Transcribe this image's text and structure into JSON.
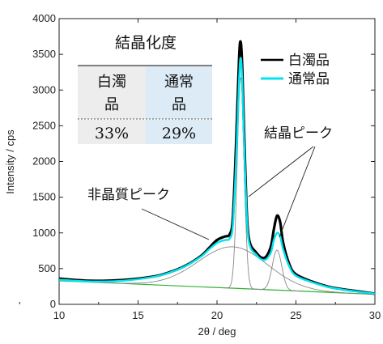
{
  "chart_data": {
    "type": "line",
    "xlabel": "2θ / deg",
    "ylabel": "Intensity / cps",
    "xlim": [
      10,
      30
    ],
    "ylim": [
      0,
      4000
    ],
    "x_ticks": [
      "10",
      "15",
      "20",
      "25",
      "30"
    ],
    "y_ticks": [
      "0",
      "500",
      "1000",
      "1500",
      "2000",
      "2500",
      "3000",
      "3500",
      "4000"
    ],
    "legend": {
      "position": "top-right",
      "entries": [
        {
          "label": "白濁品",
          "color": "#000000"
        },
        {
          "label": "通常品",
          "color": "#00e5f0"
        }
      ]
    },
    "series": [
      {
        "name": "白濁品",
        "color": "#000000",
        "x": [
          10,
          12,
          14,
          16,
          17,
          18,
          19,
          19.5,
          20,
          20.5,
          20.8,
          21.0,
          21.2,
          21.4,
          21.5,
          21.6,
          21.8,
          22.0,
          22.5,
          23.0,
          23.4,
          23.6,
          23.8,
          24.0,
          24.2,
          24.6,
          25.0,
          26,
          27,
          28,
          29,
          30
        ],
        "y": [
          360,
          330,
          340,
          390,
          450,
          540,
          680,
          790,
          900,
          950,
          980,
          1200,
          2200,
          3450,
          3670,
          3300,
          1800,
          950,
          720,
          650,
          800,
          1050,
          1240,
          1150,
          850,
          550,
          420,
          320,
          250,
          210,
          180,
          150
        ]
      },
      {
        "name": "通常品",
        "color": "#00e5f0",
        "x": [
          10,
          12,
          14,
          16,
          17,
          18,
          19,
          19.5,
          20,
          20.5,
          20.8,
          21.0,
          21.2,
          21.4,
          21.5,
          21.6,
          21.8,
          22.0,
          22.5,
          23.0,
          23.4,
          23.6,
          23.8,
          24.0,
          24.2,
          24.6,
          25.0,
          26,
          27,
          28,
          29,
          30
        ],
        "y": [
          345,
          320,
          330,
          385,
          445,
          535,
          670,
          770,
          860,
          900,
          920,
          1100,
          1950,
          3150,
          3450,
          3100,
          1700,
          900,
          690,
          620,
          720,
          900,
          1000,
          950,
          760,
          520,
          400,
          310,
          245,
          205,
          175,
          150
        ]
      }
    ],
    "components": [
      {
        "name": "非晶質ピーク",
        "center": 21.0,
        "height": 580,
        "width": 2.2,
        "color": "#888888"
      },
      {
        "name": "結晶ピーク",
        "center": 21.5,
        "height": 2950,
        "width": 0.22,
        "color": "#888888"
      },
      {
        "name": "結晶ピーク",
        "center": 23.8,
        "height": 560,
        "width": 0.3,
        "color": "#888888"
      }
    ],
    "baseline": {
      "x": [
        10,
        30
      ],
      "y": [
        330,
        140
      ],
      "color": "#30b030"
    },
    "annotations": {
      "amorphous": "非晶質ピーク",
      "crystal": "結晶ピーク"
    },
    "crystallinity_table": {
      "title": "結晶化度",
      "headers": [
        "白濁品",
        "通常品"
      ],
      "values": [
        "33%",
        "29%"
      ],
      "colors": {
        "header1": "#ededed",
        "header2": "#dcebf5"
      }
    }
  }
}
